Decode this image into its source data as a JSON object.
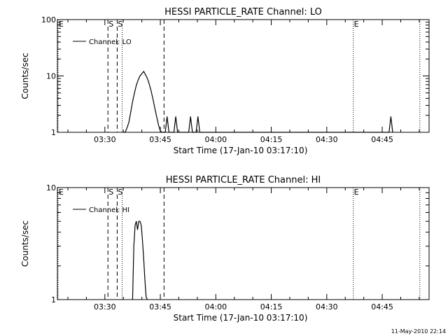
{
  "footer_timestamp": "11-May-2010 22:14",
  "chart_data": [
    {
      "type": "line",
      "title": "HESSI PARTICLE_RATE Channel: LO",
      "xlabel": "Start Time (17-Jan-10 03:17:10)",
      "ylabel": "Counts/sec",
      "y_scale": "log",
      "ylim": [
        1,
        100
      ],
      "xlim": [
        "03:17:10",
        "04:57:40"
      ],
      "ytick_labels": [
        "1",
        "10",
        "100"
      ],
      "xtick_labels": [
        "03:30",
        "03:45",
        "04:00",
        "04:15",
        "04:30",
        "04:45"
      ],
      "legend": "Channel: LO",
      "legend_placement": "top-left",
      "markers": [
        {
          "label": "E",
          "time": "03:17:20",
          "style": "dotted"
        },
        {
          "label": "S",
          "time": "03:30:50",
          "style": "dashed"
        },
        {
          "label": "S",
          "time": "03:33:20",
          "style": "dashed"
        },
        {
          "label": "",
          "time": "03:34:40",
          "style": "dotted"
        },
        {
          "label": "",
          "time": "03:46:00",
          "style": "dashed"
        },
        {
          "label": "E",
          "time": "04:37:10",
          "style": "dotted"
        },
        {
          "label": "",
          "time": "04:55:10",
          "style": "dotted"
        }
      ],
      "series": [
        {
          "x": [
            "03:35:00",
            "03:35:30",
            "03:36:00",
            "03:36:30",
            "03:37:00",
            "03:37:30",
            "03:38:00",
            "03:38:30",
            "03:39:00",
            "03:39:30",
            "03:40:00",
            "03:40:30",
            "03:41:00",
            "03:41:30",
            "03:42:00",
            "03:42:30",
            "03:43:00",
            "03:43:30",
            "03:44:00",
            "03:44:30",
            "03:45:00",
            "03:45:30",
            "03:46:20",
            "03:46:50",
            "03:47:20",
            "03:48:40",
            "03:49:10",
            "03:49:40",
            "03:52:40",
            "03:53:10",
            "03:53:40",
            "03:54:40",
            "03:55:10",
            "03:55:40",
            "04:46:50",
            "04:47:20",
            "04:47:50"
          ],
          "y": [
            1,
            1,
            1.2,
            1.5,
            2.3,
            3.5,
            5,
            6.8,
            8.5,
            10,
            11,
            12,
            10.5,
            9,
            7.2,
            5.4,
            3.9,
            2.7,
            1.9,
            1.35,
            1.05,
            1,
            1,
            1.9,
            1,
            1,
            1.9,
            1,
            1,
            1.9,
            1,
            1,
            1.9,
            1,
            1,
            1.9,
            1
          ]
        }
      ]
    },
    {
      "type": "line",
      "title": "HESSI PARTICLE_RATE Channel: HI",
      "xlabel": "Start Time (17-Jan-10 03:17:10)",
      "ylabel": "Counts/sec",
      "y_scale": "log",
      "ylim": [
        1,
        10
      ],
      "xlim": [
        "03:17:10",
        "04:57:40"
      ],
      "ytick_labels": [
        "1",
        "10"
      ],
      "xtick_labels": [
        "03:30",
        "03:45",
        "04:00",
        "04:15",
        "04:30",
        "04:45"
      ],
      "legend": "Channel: HI",
      "legend_placement": "top-left",
      "markers": [
        {
          "label": "E",
          "time": "03:17:20",
          "style": "dotted"
        },
        {
          "label": "S",
          "time": "03:30:50",
          "style": "dashed"
        },
        {
          "label": "S",
          "time": "03:33:20",
          "style": "dashed"
        },
        {
          "label": "",
          "time": "03:34:40",
          "style": "dotted"
        },
        {
          "label": "",
          "time": "03:46:00",
          "style": "dashed"
        },
        {
          "label": "E",
          "time": "04:37:10",
          "style": "dotted"
        },
        {
          "label": "",
          "time": "04:55:10",
          "style": "dotted"
        }
      ],
      "series": [
        {
          "x": [
            "03:37:30",
            "03:37:50",
            "03:38:10",
            "03:38:30",
            "03:38:50",
            "03:39:10",
            "03:39:30",
            "03:39:50",
            "03:40:10",
            "03:40:30",
            "03:40:50",
            "03:41:10",
            "03:41:30"
          ],
          "y": [
            1,
            3,
            4.6,
            5,
            4.2,
            5,
            5,
            4.6,
            3.4,
            2.3,
            1.5,
            1.05,
            1
          ]
        }
      ]
    }
  ]
}
